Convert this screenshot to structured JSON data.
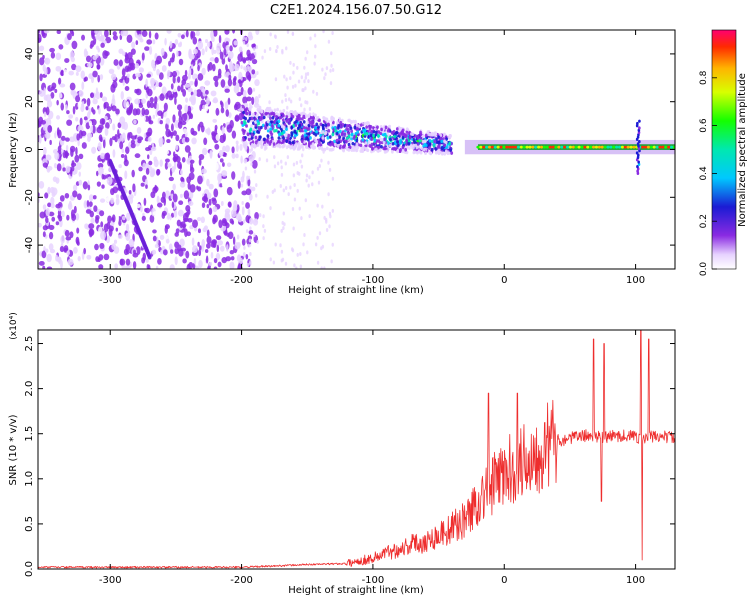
{
  "figure_title": "C2E1.2024.156.07.50.G12",
  "colors": {
    "snr_line": "#ee2d2d",
    "axis": "#000000",
    "background": "#ffffff"
  },
  "chart_data": [
    {
      "type": "heatmap",
      "title": "C2E1.2024.156.07.50.G12",
      "xlabel": "Height of straight line (km)",
      "ylabel": "Frequency (Hz)",
      "xlim": [
        -355,
        130
      ],
      "ylim": [
        -50,
        50
      ],
      "x_ticks": [
        -300,
        -200,
        -100,
        0,
        100
      ],
      "y_ticks": [
        -40,
        -20,
        0,
        20,
        40
      ],
      "colorbar": {
        "label": "Normalized spectral amplitude",
        "range": [
          0,
          1
        ],
        "ticks": [
          0.0,
          0.2,
          0.4,
          0.6,
          0.8
        ],
        "colormap": "rainbow (white/violet at 0 to magenta-red at 1)"
      },
      "features": [
        {
          "region_km": [
            -355,
            -200
          ],
          "description": "diffuse violet noise over full band",
          "amplitude": 0.1
        },
        {
          "region_km": [
            -200,
            -40
          ],
          "center_hz_start": 10,
          "center_hz_end": 2,
          "amplitude": 0.35
        },
        {
          "region_km": [
            -20,
            130
          ],
          "center_hz": 1,
          "amplitude": 0.85
        },
        {
          "diagonal_trace_km": [
            -300,
            -270
          ],
          "hz": [
            -5,
            -45
          ]
        }
      ]
    },
    {
      "type": "line",
      "xlabel": "Height of straight line (km)",
      "ylabel": "SNR (10 * v/v)",
      "y_scale_note": "(x10⁴)",
      "xlim": [
        -355,
        130
      ],
      "ylim": [
        0,
        2.65
      ],
      "x_ticks": [
        -300,
        -200,
        -100,
        0,
        100
      ],
      "y_ticks": [
        0.0,
        0.5,
        1.0,
        1.5,
        2.0,
        2.5
      ],
      "series": [
        {
          "x": [
            -355,
            -300,
            -250,
            -200,
            -180,
            -150,
            -120,
            -100,
            -90,
            -80,
            -70,
            -60,
            -50,
            -40,
            -30,
            -20,
            -15,
            -10,
            -5,
            0,
            10,
            20,
            30,
            40,
            50,
            60,
            70,
            75,
            80,
            90,
            100,
            105,
            107,
            110,
            115,
            120,
            130
          ],
          "values": [
            0.02,
            0.02,
            0.02,
            0.02,
            0.03,
            0.05,
            0.06,
            0.12,
            0.18,
            0.22,
            0.28,
            0.3,
            0.38,
            0.45,
            0.55,
            0.75,
            0.85,
            0.9,
            1.0,
            1.05,
            1.15,
            1.25,
            1.35,
            1.42,
            1.45,
            1.48,
            1.47,
            1.45,
            1.47,
            1.48,
            1.47,
            1.45,
            1.43,
            1.46,
            1.47,
            1.47,
            1.46
          ],
          "spikes": [
            {
              "x": -12,
              "y": 1.95
            },
            {
              "x": 10,
              "y": 1.95
            },
            {
              "x": 68,
              "y": 2.55
            },
            {
              "x": 76,
              "y": 2.5
            },
            {
              "x": 104,
              "y": 2.65
            },
            {
              "x": 110,
              "y": 2.55
            },
            {
              "x": 105,
              "y": 0.1
            },
            {
              "x": 74,
              "y": 0.75
            }
          ]
        }
      ]
    }
  ]
}
